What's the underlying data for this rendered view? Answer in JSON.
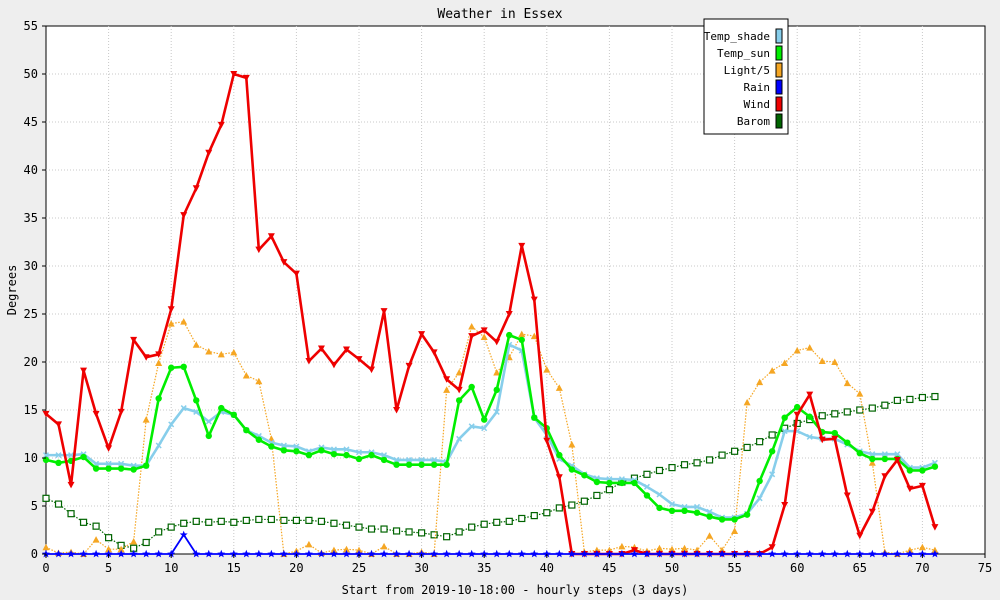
{
  "chart_data": {
    "type": "line",
    "title": "Weather in Essex",
    "xlabel": "Start from 2019-10-18:00 - hourly steps (3 days)",
    "ylabel": "Degrees",
    "xlim": [
      0,
      75
    ],
    "ylim": [
      0,
      55
    ],
    "x_ticks": [
      "0",
      "5",
      "10",
      "15",
      "20",
      "25",
      "30",
      "35",
      "40",
      "45",
      "50",
      "55",
      "60",
      "65",
      "70",
      "75"
    ],
    "y_ticks": [
      "0",
      "5",
      "10",
      "15",
      "20",
      "25",
      "30",
      "35",
      "40",
      "45",
      "50",
      "55"
    ],
    "grid": true,
    "legend_position": "top-right",
    "x": [
      0,
      1,
      2,
      3,
      4,
      5,
      6,
      7,
      8,
      9,
      10,
      11,
      12,
      13,
      14,
      15,
      16,
      17,
      18,
      19,
      20,
      21,
      22,
      23,
      24,
      25,
      26,
      27,
      28,
      29,
      30,
      31,
      32,
      33,
      34,
      35,
      36,
      37,
      38,
      39,
      40,
      41,
      42,
      43,
      44,
      45,
      46,
      47,
      48,
      49,
      50,
      51,
      52,
      53,
      54,
      55,
      56,
      57,
      58,
      59,
      60,
      61,
      62,
      63,
      64,
      65,
      66,
      67,
      68,
      69,
      70,
      71
    ],
    "series": [
      {
        "name": "Temp_shade",
        "color": "#87ceeb",
        "style": "solid-thick-x",
        "values": [
          10.3,
          10.3,
          10.3,
          10.4,
          9.4,
          9.4,
          9.4,
          9.2,
          9.2,
          11.3,
          13.5,
          15.2,
          14.8,
          13.8,
          14.8,
          14.5,
          12.9,
          12.3,
          11.6,
          11.3,
          11.2,
          10.7,
          11.1,
          10.9,
          10.9,
          10.6,
          10.6,
          10.3,
          9.8,
          9.8,
          9.8,
          9.8,
          9.6,
          12.0,
          13.3,
          13.1,
          14.8,
          21.8,
          21.2,
          14.2,
          12.4,
          9.9,
          9.2,
          8.3,
          7.9,
          7.8,
          7.8,
          7.7,
          7.0,
          6.2,
          5.2,
          4.9,
          4.9,
          4.4,
          3.8,
          3.8,
          4.2,
          5.8,
          8.3,
          12.8,
          12.8,
          12.2,
          12.0,
          12.0,
          11.4,
          10.7,
          10.4,
          10.4,
          10.4,
          9.0,
          9.0,
          9.5
        ]
      },
      {
        "name": "Temp_sun",
        "color": "#00ee00",
        "style": "solid-thick-dot",
        "values": [
          9.8,
          9.5,
          9.7,
          10.1,
          8.9,
          8.9,
          8.9,
          8.8,
          9.2,
          16.2,
          19.4,
          19.5,
          16.0,
          12.3,
          15.2,
          14.5,
          12.9,
          11.9,
          11.2,
          10.8,
          10.7,
          10.3,
          10.8,
          10.4,
          10.3,
          9.9,
          10.3,
          9.8,
          9.3,
          9.3,
          9.3,
          9.3,
          9.3,
          16.0,
          17.4,
          14.0,
          17.1,
          22.8,
          22.3,
          14.2,
          13.1,
          10.3,
          8.8,
          8.2,
          7.5,
          7.4,
          7.4,
          7.4,
          6.1,
          4.8,
          4.5,
          4.5,
          4.3,
          3.9,
          3.6,
          3.6,
          4.1,
          7.6,
          10.7,
          14.2,
          15.3,
          14.3,
          12.7,
          12.6,
          11.6,
          10.5,
          9.9,
          9.9,
          9.9,
          8.7,
          8.7,
          9.1
        ]
      },
      {
        "name": "Light/5",
        "color": "#f5a623",
        "style": "dotted-triangle",
        "values": [
          0.7,
          0.1,
          0.2,
          0.0,
          1.5,
          0.5,
          0.5,
          1.3,
          14.0,
          19.9,
          24.0,
          24.2,
          21.8,
          21.1,
          20.8,
          21.0,
          18.6,
          18.0,
          12.0,
          0.0,
          0.3,
          1.0,
          0.1,
          0.4,
          0.5,
          0.4,
          0.0,
          0.8,
          0.0,
          0.0,
          0.2,
          0.0,
          17.1,
          18.9,
          23.7,
          22.6,
          18.9,
          20.5,
          22.9,
          22.7,
          19.2,
          17.3,
          11.4,
          0.2,
          0.4,
          0.4,
          0.8,
          0.7,
          0.3,
          0.6,
          0.5,
          0.6,
          0.4,
          1.9,
          0.4,
          2.4,
          15.8,
          17.9,
          19.1,
          19.9,
          21.2,
          21.5,
          20.1,
          20.0,
          17.8,
          16.7,
          9.5,
          0.2,
          0.0,
          0.4,
          0.7,
          0.4
        ]
      },
      {
        "name": "Rain",
        "color": "#0000ff",
        "style": "solid-star",
        "values": [
          0,
          0,
          0,
          0,
          0,
          0,
          0,
          0,
          0,
          0,
          0,
          2.0,
          0,
          0,
          0,
          0,
          0,
          0,
          0,
          0,
          0,
          0,
          0,
          0,
          0,
          0,
          0,
          0,
          0,
          0,
          0,
          0,
          0,
          0,
          0,
          0,
          0,
          0,
          0,
          0,
          0,
          0,
          0,
          0,
          0,
          0,
          0,
          0,
          0,
          0,
          0,
          0,
          0,
          0,
          0,
          0,
          0,
          0,
          0,
          0,
          0,
          0,
          0,
          0,
          0,
          0,
          0,
          0,
          0,
          0,
          0,
          0
        ]
      },
      {
        "name": "Wind",
        "color": "#ee0000",
        "style": "solid-thick-downtriangle",
        "values": [
          14.6,
          13.5,
          7.2,
          19.1,
          14.6,
          11.0,
          14.8,
          22.3,
          20.5,
          20.8,
          25.5,
          35.3,
          38.1,
          41.8,
          44.7,
          50.0,
          49.6,
          31.7,
          33.1,
          30.4,
          29.2,
          20.1,
          21.4,
          19.7,
          21.3,
          20.3,
          19.2,
          25.3,
          15.0,
          19.6,
          22.9,
          21.0,
          18.2,
          17.1,
          22.7,
          23.3,
          22.1,
          25.0,
          32.1,
          26.5,
          11.8,
          8.0,
          0.0,
          0.0,
          0.0,
          0.0,
          0.0,
          0.4,
          0.0,
          0.0,
          0.0,
          0.0,
          0.0,
          0.0,
          0.0,
          0.0,
          0.0,
          0.0,
          0.7,
          5.1,
          14.5,
          16.6,
          11.9,
          12.0,
          6.1,
          1.9,
          4.4,
          8.1,
          9.8,
          6.8,
          7.1,
          2.8
        ]
      },
      {
        "name": "Barom",
        "color": "#006400",
        "style": "dotted-square",
        "values": [
          5.8,
          5.2,
          4.2,
          3.3,
          2.9,
          1.7,
          0.9,
          0.6,
          1.2,
          2.3,
          2.8,
          3.2,
          3.4,
          3.3,
          3.4,
          3.3,
          3.5,
          3.6,
          3.6,
          3.5,
          3.5,
          3.5,
          3.4,
          3.2,
          3.0,
          2.8,
          2.6,
          2.6,
          2.4,
          2.3,
          2.2,
          2.0,
          1.8,
          2.3,
          2.8,
          3.1,
          3.3,
          3.4,
          3.7,
          4.0,
          4.3,
          4.8,
          5.1,
          5.5,
          6.1,
          6.7,
          7.5,
          7.9,
          8.3,
          8.7,
          9.0,
          9.3,
          9.5,
          9.8,
          10.3,
          10.7,
          11.1,
          11.7,
          12.4,
          13.1,
          13.6,
          14.0,
          14.4,
          14.6,
          14.8,
          15.0,
          15.2,
          15.5,
          16.0,
          16.1,
          16.3,
          16.4
        ]
      }
    ]
  }
}
